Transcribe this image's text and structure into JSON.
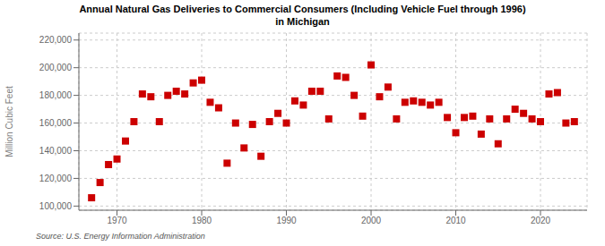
{
  "chart_data": {
    "type": "scatter",
    "title": "Annual Natural Gas Deliveries to Commercial Consumers (Including Vehicle Fuel through 1996)\nin Michigan",
    "ylabel": "Million Cubic Feet",
    "annotations": [
      "Source: U.S. Energy Information Administration"
    ],
    "color": "#cc0000",
    "marker": "square",
    "grid": true,
    "xlim": [
      1965.5,
      2025.5
    ],
    "ylim": [
      97000,
      225000
    ],
    "xticks": [
      1970,
      1980,
      1990,
      2000,
      2010,
      2020
    ],
    "yticks": [
      {
        "value": 100000,
        "label": "100,000"
      },
      {
        "value": 120000,
        "label": "120,000"
      },
      {
        "value": 140000,
        "label": "140,000"
      },
      {
        "value": 160000,
        "label": "160,000"
      },
      {
        "value": 180000,
        "label": "180,000"
      },
      {
        "value": 200000,
        "label": "200,000"
      },
      {
        "value": 220000,
        "label": "220,000"
      }
    ],
    "x": [
      1967,
      1968,
      1969,
      1970,
      1971,
      1972,
      1973,
      1974,
      1975,
      1976,
      1977,
      1978,
      1979,
      1980,
      1981,
      1982,
      1983,
      1984,
      1985,
      1986,
      1987,
      1988,
      1989,
      1990,
      1991,
      1992,
      1993,
      1994,
      1995,
      1996,
      1997,
      1998,
      1999,
      2000,
      2001,
      2002,
      2003,
      2004,
      2005,
      2006,
      2007,
      2008,
      2009,
      2010,
      2011,
      2012,
      2013,
      2014,
      2015,
      2016,
      2017,
      2018,
      2019,
      2020,
      2021,
      2022,
      2023,
      2024
    ],
    "values": [
      106000,
      117000,
      130000,
      134000,
      147000,
      161000,
      181000,
      179000,
      161000,
      180000,
      183000,
      181000,
      189000,
      191000,
      175000,
      171000,
      131000,
      160000,
      142000,
      159000,
      136000,
      161000,
      167000,
      160000,
      176000,
      173000,
      183000,
      183000,
      163000,
      194000,
      193000,
      180000,
      165000,
      202000,
      179000,
      186000,
      163000,
      175000,
      176000,
      175000,
      173000,
      175000,
      164000,
      153000,
      164000,
      165000,
      152000,
      163000,
      145000,
      163000,
      170000,
      167000,
      163000,
      161000,
      181000,
      182000,
      160000,
      161000
    ]
  }
}
